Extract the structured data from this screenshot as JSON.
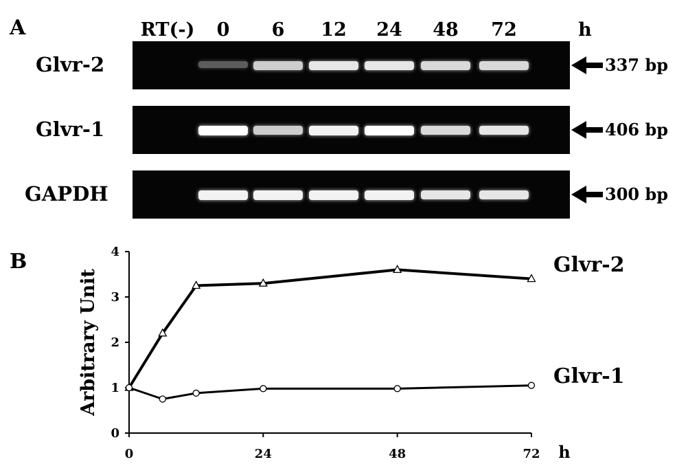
{
  "panel_a": {
    "letter": "A",
    "lanes": [
      {
        "label": "RT(-)"
      },
      {
        "label": "0"
      },
      {
        "label": "6"
      },
      {
        "label": "12"
      },
      {
        "label": "24"
      },
      {
        "label": "48"
      },
      {
        "label": "72"
      }
    ],
    "time_unit": "h",
    "rows": [
      {
        "gene": "Glvr-2",
        "size": "337 bp",
        "band_intensity": [
          0,
          0.35,
          0.8,
          0.9,
          0.9,
          0.85,
          0.85
        ]
      },
      {
        "gene": "Glvr-1",
        "size": "406 bp",
        "band_intensity": [
          0,
          1.0,
          0.8,
          0.95,
          1.0,
          0.85,
          0.9
        ]
      },
      {
        "gene": "GAPDH",
        "size": "300 bp",
        "band_intensity": [
          0,
          0.95,
          0.95,
          0.95,
          0.95,
          0.9,
          0.9
        ]
      }
    ]
  },
  "panel_b": {
    "letter": "B"
  },
  "chart_data": {
    "type": "line",
    "ylabel": "Arbitrary Unit",
    "xlabel_unit": "h",
    "x_ticks": [
      "0",
      "24",
      "48",
      "72"
    ],
    "y_ticks": [
      "0",
      "1",
      "2",
      "3",
      "4"
    ],
    "xlim": [
      0,
      72
    ],
    "ylim": [
      0,
      4
    ],
    "series": [
      {
        "name": "Glvr-2",
        "marker": "triangle",
        "x": [
          0,
          6,
          12,
          24,
          48,
          72
        ],
        "y": [
          1.0,
          2.2,
          3.25,
          3.3,
          3.6,
          3.4
        ]
      },
      {
        "name": "Glvr-1",
        "marker": "circle",
        "x": [
          0,
          6,
          12,
          24,
          48,
          72
        ],
        "y": [
          1.0,
          0.75,
          0.88,
          0.98,
          0.98,
          1.05
        ]
      }
    ]
  }
}
